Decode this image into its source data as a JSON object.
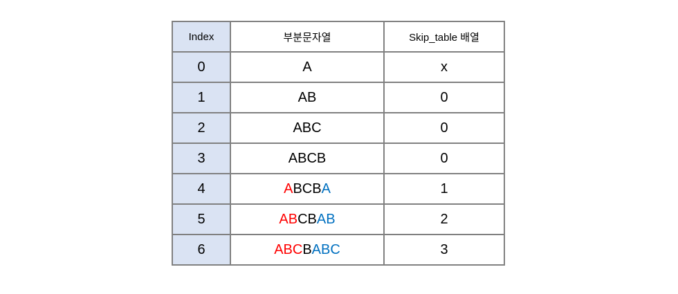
{
  "colors": {
    "prefix_match": "#ff0000",
    "suffix_match": "#0070c0",
    "index_bg": "#dae3f3",
    "border": "#808080"
  },
  "table": {
    "headers": {
      "index": "Index",
      "substring": "부분문자열",
      "skip": "Skip_table 배열"
    },
    "rows": [
      {
        "index": "0",
        "substring": [
          {
            "text": "A",
            "color": "black"
          }
        ],
        "skip": "x"
      },
      {
        "index": "1",
        "substring": [
          {
            "text": "AB",
            "color": "black"
          }
        ],
        "skip": "0"
      },
      {
        "index": "2",
        "substring": [
          {
            "text": "ABC",
            "color": "black"
          }
        ],
        "skip": "0"
      },
      {
        "index": "3",
        "substring": [
          {
            "text": "ABCB",
            "color": "black"
          }
        ],
        "skip": "0"
      },
      {
        "index": "4",
        "substring": [
          {
            "text": "A",
            "color": "red"
          },
          {
            "text": "BCB",
            "color": "black"
          },
          {
            "text": "A",
            "color": "blue"
          }
        ],
        "skip": "1"
      },
      {
        "index": "5",
        "substring": [
          {
            "text": "AB",
            "color": "red"
          },
          {
            "text": "CB",
            "color": "black"
          },
          {
            "text": "AB",
            "color": "blue"
          }
        ],
        "skip": "2"
      },
      {
        "index": "6",
        "substring": [
          {
            "text": "ABC",
            "color": "red"
          },
          {
            "text": "B",
            "color": "black"
          },
          {
            "text": "ABC",
            "color": "blue"
          }
        ],
        "skip": "3"
      }
    ]
  }
}
